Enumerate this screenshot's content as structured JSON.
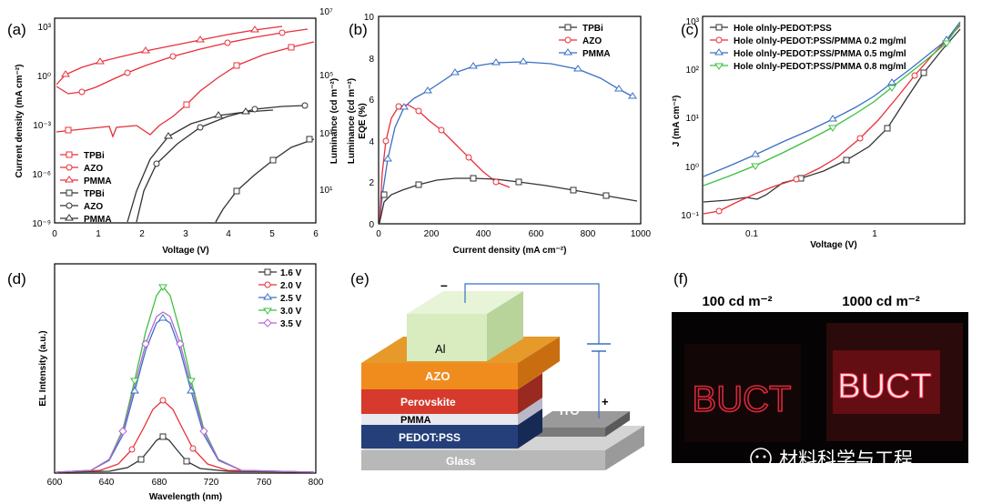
{
  "panels": {
    "a": {
      "label": "(a)",
      "xlabel": "Voltage (V)",
      "ylabel_left": "Current density (mA cm⁻²)",
      "ylabel_right": "Luminance (cd m⁻²)",
      "xticks": [
        "0",
        "1",
        "2",
        "3",
        "4",
        "5",
        "6"
      ],
      "yticks_left": [
        "10³",
        "10⁰",
        "10⁻³",
        "10⁻⁶",
        "10⁻⁹"
      ],
      "yticks_right": [
        "10⁷",
        "10⁵",
        "10³",
        "10¹"
      ],
      "legend": [
        {
          "name": "TPBi",
          "color": "#e8303a",
          "marker": "square"
        },
        {
          "name": "AZO",
          "color": "#e8303a",
          "marker": "circle"
        },
        {
          "name": "PMMA",
          "color": "#e8303a",
          "marker": "triangle"
        },
        {
          "name": "TPBi",
          "color": "#333333",
          "marker": "square"
        },
        {
          "name": "AZO",
          "color": "#333333",
          "marker": "circle"
        },
        {
          "name": "PMMA",
          "color": "#333333",
          "marker": "triangle"
        }
      ]
    },
    "b": {
      "label": "(b)",
      "xlabel": "Current density (mA cm⁻²)",
      "ylabel_left": "Luminance (cd m⁻²)",
      "ylabel_inner": "EQE (%)",
      "xticks": [
        "0",
        "200",
        "400",
        "600",
        "800",
        "1000"
      ],
      "yticks": [
        "0",
        "2",
        "4",
        "6",
        "8",
        "10"
      ],
      "legend": [
        {
          "name": "TPBi",
          "color": "#333333",
          "marker": "square"
        },
        {
          "name": "AZO",
          "color": "#e8303a",
          "marker": "circle"
        },
        {
          "name": "PMMA",
          "color": "#3a6fc4",
          "marker": "triangle"
        }
      ]
    },
    "c": {
      "label": "(c)",
      "xlabel": "Voltage (V)",
      "ylabel": "J (mA cm⁻²)",
      "xticks": [
        "0.1",
        "1"
      ],
      "yticks": [
        "10³",
        "10²",
        "10¹",
        "10⁰",
        "10⁻¹"
      ],
      "legend": [
        {
          "name": "Hole olnly-PEDOT:PSS",
          "color": "#333333",
          "marker": "square"
        },
        {
          "name": "Hole olnly-PEDOT:PSS/PMMA 0.2 mg/ml",
          "color": "#e8303a",
          "marker": "circle"
        },
        {
          "name": "Hole olnly-PEDOT:PSS/PMMA 0.5 mg/ml",
          "color": "#3a6fc4",
          "marker": "triangle"
        },
        {
          "name": "Hole olnly-PEDOT:PSS/PMMA 0.8 mg/ml",
          "color": "#3cbf3c",
          "marker": "triangle-down"
        }
      ]
    },
    "d": {
      "label": "(d)",
      "xlabel": "Wavelength (nm)",
      "ylabel": "EL Intensity (a.u.)",
      "xticks": [
        "600",
        "640",
        "680",
        "720",
        "760",
        "800"
      ],
      "legend": [
        {
          "name": "1.6 V",
          "color": "#333333",
          "marker": "square"
        },
        {
          "name": "2.0 V",
          "color": "#e8303a",
          "marker": "circle"
        },
        {
          "name": "2.5 V",
          "color": "#3a6fc4",
          "marker": "triangle"
        },
        {
          "name": "3.0 V",
          "color": "#3cbf3c",
          "marker": "triangle-down"
        },
        {
          "name": "3.5 V",
          "color": "#b266d6",
          "marker": "diamond"
        }
      ]
    },
    "e": {
      "label": "(e)",
      "layers": [
        "Al",
        "AZO",
        "Perovskite",
        "PMMA",
        "PEDOT:PSS",
        "Glass",
        "ITO"
      ],
      "minus": "–",
      "plus": "+"
    },
    "f": {
      "label": "(f)",
      "left_caption": "100 cd m⁻²",
      "right_caption": "1000 cd m⁻²",
      "device_text_left": "BUCT",
      "device_text_right": "BUCT"
    }
  },
  "watermark": "材料科学与工程",
  "colors": {
    "red": "#e8303a",
    "black": "#333333",
    "blue": "#3a6fc4",
    "green": "#3cbf3c",
    "purple": "#b266d6",
    "al": "#d8ecc0",
    "azo": "#f08c1e",
    "perovskite": "#d63a2c",
    "pmma": "#e8e8f0",
    "pedot": "#243f7a",
    "glass": "#b8b8b8",
    "ito": "#7a7a7a"
  }
}
